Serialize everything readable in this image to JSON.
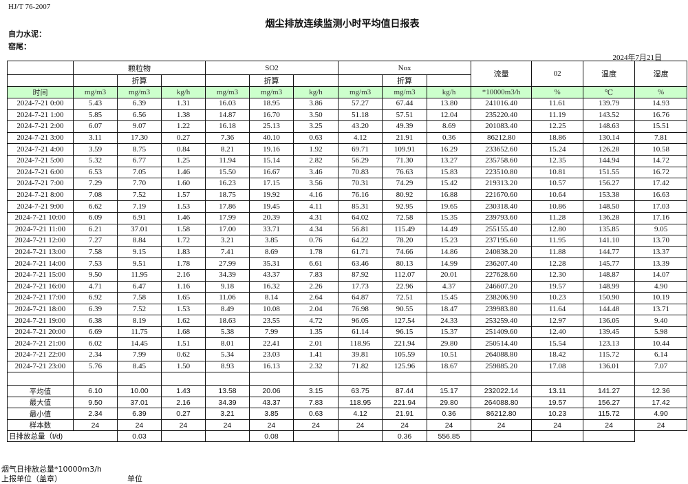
{
  "standard": "HJ/T  76-2007",
  "title": "烟尘排放连续监测小时平均值日报表",
  "company": "自力水泥：",
  "location": "窑尾：",
  "date": "2024年7月21日",
  "colors": {
    "unit_row_bg": "#ccffcc"
  },
  "header": {
    "particulate": "颗粒物",
    "so2": "SO2",
    "nox": "Nox",
    "flow": "流量",
    "o2": "02",
    "temperature": "温度",
    "humidity": "湿度",
    "converted": "折算",
    "time": "时间",
    "units": [
      "mg/m3",
      "mg/m3",
      "kg/h",
      "mg/m3",
      "mg/m3",
      "kg/h",
      "mg/m3",
      "mg/m3",
      "kg/h",
      "*10000m3/h",
      "%",
      "℃",
      "%"
    ]
  },
  "rows": [
    [
      "2024-7-21  0:00",
      "5.43",
      "6.39",
      "1.31",
      "16.03",
      "18.95",
      "3.86",
      "57.27",
      "67.44",
      "13.80",
      "241016.40",
      "11.61",
      "139.79",
      "14.93"
    ],
    [
      "2024-7-21  1:00",
      "5.85",
      "6.56",
      "1.38",
      "14.87",
      "16.70",
      "3.50",
      "51.18",
      "57.51",
      "12.04",
      "235220.40",
      "11.19",
      "143.52",
      "16.76"
    ],
    [
      "2024-7-21  2:00",
      "6.07",
      "9.07",
      "1.22",
      "16.18",
      "25.13",
      "3.25",
      "43.20",
      "49.39",
      "8.69",
      "201083.40",
      "12.25",
      "148.63",
      "15.51"
    ],
    [
      "2024-7-21  3:00",
      "3.11",
      "17.30",
      "0.27",
      "7.36",
      "40.10",
      "0.63",
      "4.12",
      "21.91",
      "0.36",
      "86212.80",
      "18.86",
      "130.14",
      "7.81"
    ],
    [
      "2024-7-21  4:00",
      "3.59",
      "8.75",
      "0.84",
      "8.21",
      "19.16",
      "1.92",
      "69.71",
      "109.91",
      "16.29",
      "233652.60",
      "15.24",
      "126.28",
      "10.58"
    ],
    [
      "2024-7-21  5:00",
      "5.32",
      "6.77",
      "1.25",
      "11.94",
      "15.14",
      "2.82",
      "56.29",
      "71.30",
      "13.27",
      "235758.60",
      "12.35",
      "144.94",
      "14.72"
    ],
    [
      "2024-7-21  6:00",
      "6.53",
      "7.05",
      "1.46",
      "15.50",
      "16.67",
      "3.46",
      "70.83",
      "76.63",
      "15.83",
      "223510.80",
      "10.81",
      "151.55",
      "16.72"
    ],
    [
      "2024-7-21  7:00",
      "7.29",
      "7.70",
      "1.60",
      "16.23",
      "17.15",
      "3.56",
      "70.31",
      "74.29",
      "15.42",
      "219313.20",
      "10.57",
      "156.27",
      "17.42"
    ],
    [
      "2024-7-21  8:00",
      "7.08",
      "7.52",
      "1.57",
      "18.75",
      "19.92",
      "4.16",
      "76.16",
      "80.92",
      "16.88",
      "221670.60",
      "10.64",
      "153.38",
      "16.63"
    ],
    [
      "2024-7-21  9:00",
      "6.62",
      "7.19",
      "1.53",
      "17.86",
      "19.45",
      "4.11",
      "85.31",
      "92.95",
      "19.65",
      "230318.40",
      "10.86",
      "148.50",
      "17.03"
    ],
    [
      "2024-7-21 10:00",
      "6.09",
      "6.91",
      "1.46",
      "17.99",
      "20.39",
      "4.31",
      "64.02",
      "72.58",
      "15.35",
      "239793.60",
      "11.28",
      "136.28",
      "17.16"
    ],
    [
      "2024-7-21 11:00",
      "6.21",
      "37.01",
      "1.58",
      "17.00",
      "33.71",
      "4.34",
      "56.81",
      "115.49",
      "14.49",
      "255155.40",
      "12.80",
      "135.85",
      "9.05"
    ],
    [
      "2024-7-21 12:00",
      "7.27",
      "8.84",
      "1.72",
      "3.21",
      "3.85",
      "0.76",
      "64.22",
      "78.20",
      "15.23",
      "237195.60",
      "11.95",
      "141.10",
      "13.70"
    ],
    [
      "2024-7-21 13:00",
      "7.58",
      "9.15",
      "1.83",
      "7.41",
      "8.69",
      "1.78",
      "61.71",
      "74.66",
      "14.86",
      "240838.20",
      "11.88",
      "144.77",
      "13.37"
    ],
    [
      "2024-7-21 14:00",
      "7.53",
      "9.51",
      "1.78",
      "27.99",
      "35.31",
      "6.61",
      "63.46",
      "80.13",
      "14.99",
      "236207.40",
      "12.28",
      "145.77",
      "13.39"
    ],
    [
      "2024-7-21 15:00",
      "9.50",
      "11.95",
      "2.16",
      "34.39",
      "43.37",
      "7.83",
      "87.92",
      "112.07",
      "20.01",
      "227628.60",
      "12.30",
      "148.87",
      "14.07"
    ],
    [
      "2024-7-21 16:00",
      "4.71",
      "6.47",
      "1.16",
      "9.18",
      "16.32",
      "2.26",
      "17.73",
      "22.96",
      "4.37",
      "246607.20",
      "19.57",
      "148.99",
      "4.90"
    ],
    [
      "2024-7-21 17:00",
      "6.92",
      "7.58",
      "1.65",
      "11.06",
      "8.14",
      "2.64",
      "64.87",
      "72.51",
      "15.45",
      "238206.90",
      "10.23",
      "150.90",
      "10.19"
    ],
    [
      "2024-7-21 18:00",
      "6.39",
      "7.52",
      "1.53",
      "8.49",
      "10.08",
      "2.04",
      "76.98",
      "90.55",
      "18.47",
      "239983.80",
      "11.64",
      "144.48",
      "13.71"
    ],
    [
      "2024-7-21 19:00",
      "6.38",
      "8.19",
      "1.62",
      "18.63",
      "23.55",
      "4.72",
      "96.05",
      "127.54",
      "24.33",
      "253259.40",
      "12.97",
      "136.05",
      "9.40"
    ],
    [
      "2024-7-21 20:00",
      "6.69",
      "11.75",
      "1.68",
      "5.38",
      "7.99",
      "1.35",
      "61.14",
      "96.15",
      "15.37",
      "251409.60",
      "12.40",
      "139.45",
      "5.98"
    ],
    [
      "2024-7-21 21:00",
      "6.02",
      "14.45",
      "1.51",
      "8.01",
      "22.41",
      "2.01",
      "118.95",
      "221.94",
      "29.80",
      "250514.40",
      "15.54",
      "123.13",
      "10.44"
    ],
    [
      "2024-7-21 22:00",
      "2.34",
      "7.99",
      "0.62",
      "5.34",
      "23.03",
      "1.41",
      "39.81",
      "105.59",
      "10.51",
      "264088.80",
      "18.42",
      "115.72",
      "6.14"
    ],
    [
      "2024-7-21 23:00",
      "5.76",
      "8.45",
      "1.50",
      "8.93",
      "16.13",
      "2.32",
      "71.82",
      "125.96",
      "18.67",
      "259885.20",
      "17.08",
      "136.01",
      "7.07"
    ]
  ],
  "summary": [
    [
      "平均值",
      "6.10",
      "10.00",
      "1.43",
      "13.58",
      "20.06",
      "3.15",
      "63.75",
      "87.44",
      "15.17",
      "232022.14",
      "13.11",
      "141.27",
      "12.36"
    ],
    [
      "最大值",
      "9.50",
      "37.01",
      "2.16",
      "34.39",
      "43.37",
      "7.83",
      "118.95",
      "221.94",
      "29.80",
      "264088.80",
      "19.57",
      "156.27",
      "17.42"
    ],
    [
      "最小值",
      "2.34",
      "6.39",
      "0.27",
      "3.21",
      "3.85",
      "0.63",
      "4.12",
      "21.91",
      "0.36",
      "86212.80",
      "10.23",
      "115.72",
      "4.90"
    ],
    [
      "样本数",
      "24",
      "24",
      "24",
      "24",
      "24",
      "24",
      "24",
      "24",
      "24",
      "24",
      "24",
      "24",
      "24"
    ]
  ],
  "daily_total": {
    "label": "日排放总量（t/d)",
    "values": [
      "0.03",
      "",
      "",
      "0.08",
      "",
      "",
      "0.36",
      "556.85",
      "",
      "",
      ""
    ]
  },
  "footer": {
    "flue_gas_note": "烟气日排放总量*10000m3/h",
    "reporting_unit": "上报单位（盖章）",
    "unit": "单位"
  }
}
